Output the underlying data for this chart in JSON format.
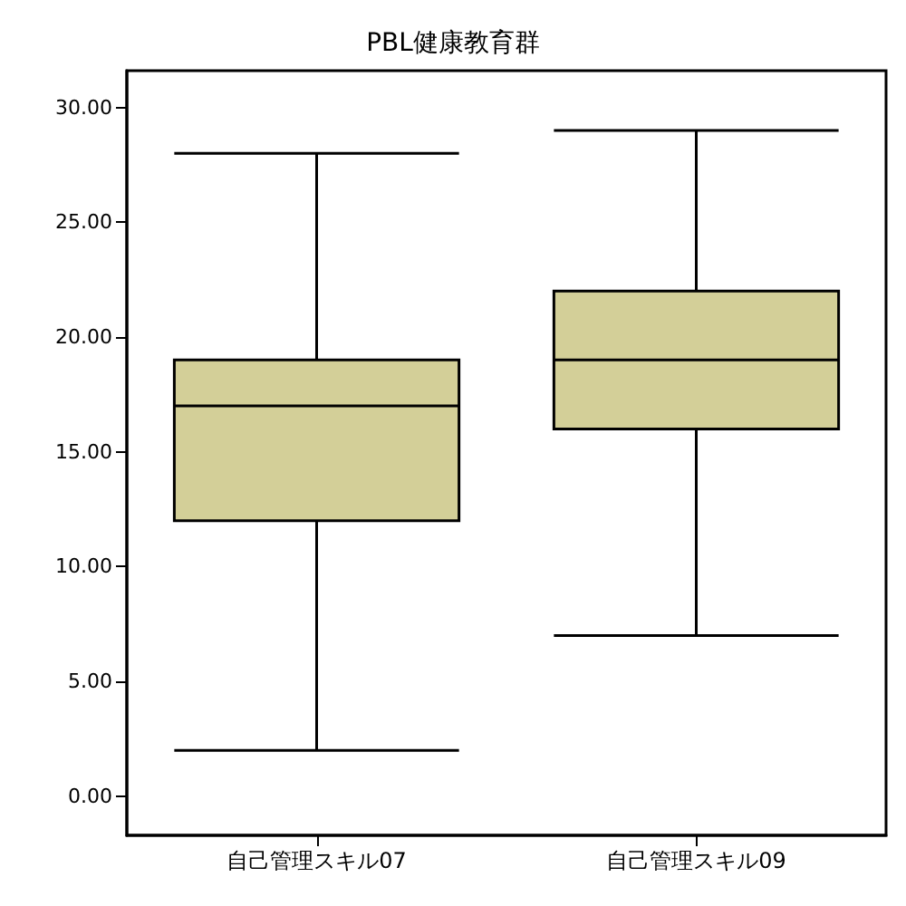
{
  "chart_data": {
    "type": "box",
    "title": "PBL健康教育群",
    "categories": [
      "自己管理スキル07",
      "自己管理スキル09"
    ],
    "boxes": [
      {
        "low": 2,
        "q1": 12,
        "median": 17,
        "q3": 19,
        "high": 28
      },
      {
        "low": 7,
        "q1": 16,
        "median": 19,
        "q3": 22,
        "high": 29
      }
    ],
    "color": "#d3cf98",
    "ylim": [
      -1.7,
      31.6
    ],
    "yticks": [
      {
        "value": 0,
        "label": "0.00"
      },
      {
        "value": 5,
        "label": "5.00"
      },
      {
        "value": 10,
        "label": "10.00"
      },
      {
        "value": 15,
        "label": "15.00"
      },
      {
        "value": 20,
        "label": "20.00"
      },
      {
        "value": 25,
        "label": "25.00"
      },
      {
        "value": 30,
        "label": "30.00"
      }
    ],
    "grid": false
  }
}
